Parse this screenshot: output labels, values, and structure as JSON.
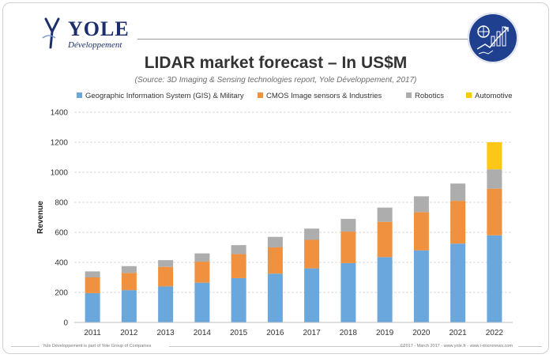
{
  "header": {
    "brand": "YOLE",
    "brand_sub": "Développement"
  },
  "title": "LIDAR market forecast – In US$M",
  "source_note": "(Source: 3D Imaging & Sensing technologies report, Yole Développement, 2017)",
  "footer": {
    "left": "Yole Développement is part of Yole Group of Companies",
    "right": "©2017 - March 2017 - www.yole.fr - www.i-micronews.com"
  },
  "colors": {
    "gis": "#6aa7dd",
    "cmos": "#f0913f",
    "robotics": "#adadad",
    "automotive": "#fcc715",
    "brand": "#1c2e6b"
  },
  "chart_data": {
    "type": "bar",
    "stacked": true,
    "categories": [
      "2011",
      "2012",
      "2013",
      "2014",
      "2015",
      "2016",
      "2017",
      "2018",
      "2019",
      "2020",
      "2021",
      "2022"
    ],
    "series": [
      {
        "name": "Geographic Information System (GIS) & Military",
        "values": [
          195,
          215,
          240,
          265,
          295,
          325,
          360,
          395,
          435,
          480,
          525,
          580
        ]
      },
      {
        "name": "CMOS Image sensors & Industries",
        "values": [
          105,
          115,
          130,
          140,
          160,
          175,
          190,
          210,
          235,
          255,
          285,
          310
        ]
      },
      {
        "name": "Robotics",
        "values": [
          40,
          45,
          45,
          55,
          60,
          70,
          75,
          85,
          95,
          105,
          115,
          130
        ]
      },
      {
        "name": "Automotive",
        "values": [
          0,
          0,
          0,
          0,
          0,
          0,
          0,
          0,
          0,
          0,
          0,
          180
        ]
      }
    ],
    "ylabel": "Revenue",
    "xlabel": "",
    "ylim": [
      0,
      1400
    ],
    "yticks": [
      0,
      200,
      400,
      600,
      800,
      1000,
      1200,
      1400
    ],
    "grid": true,
    "legend": "top"
  }
}
